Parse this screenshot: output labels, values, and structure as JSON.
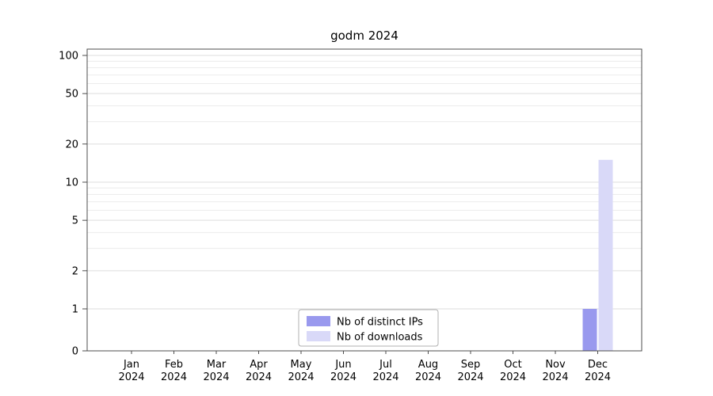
{
  "chart_data": {
    "type": "bar",
    "title": "godm 2024",
    "categories": [
      "Jan",
      "Feb",
      "Mar",
      "Apr",
      "May",
      "Jun",
      "Jul",
      "Aug",
      "Sep",
      "Oct",
      "Nov",
      "Dec"
    ],
    "year_label": "2024",
    "y_ticks": [
      0,
      1,
      2,
      5,
      10,
      20,
      50,
      100
    ],
    "y_minor_ticks": [
      3,
      4,
      6,
      7,
      8,
      9,
      30,
      40,
      60,
      70,
      80,
      90
    ],
    "yscale": "log above 1, linear 0-1",
    "ylim": [
      0,
      110
    ],
    "grid": true,
    "legend": {
      "position": "lower center inside plot",
      "entries": [
        "Nb of distinct IPs",
        "Nb of downloads"
      ]
    },
    "series": [
      {
        "name": "Nb of distinct IPs",
        "color": "#9999ee",
        "values": [
          0,
          0,
          0,
          0,
          0,
          0,
          0,
          0,
          0,
          0,
          0,
          1
        ]
      },
      {
        "name": "Nb of downloads",
        "color": "#d9d9f8",
        "values": [
          0,
          0,
          0,
          0,
          0,
          0,
          0,
          0,
          0,
          0,
          0,
          15
        ]
      }
    ],
    "colors": {
      "axis": "#4d4d4d",
      "grid_minor": "#ececec",
      "grid_major": "#dedede",
      "text": "#000000"
    }
  }
}
